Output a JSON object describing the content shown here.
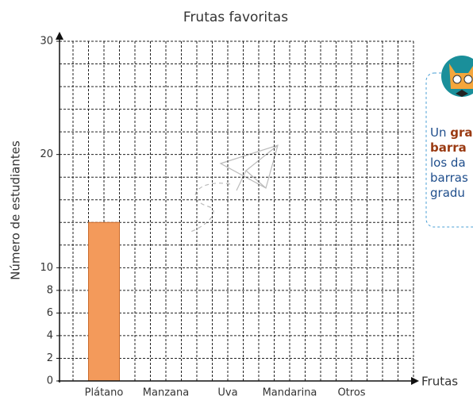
{
  "chart_data": {
    "type": "bar",
    "title": "Frutas favoritas",
    "ylabel": "Número de estudiantes",
    "xlabel": "Frutas",
    "categories": [
      "Plátano",
      "Manzana",
      "Uva",
      "Mandarina",
      "Otros"
    ],
    "values": [
      14,
      null,
      null,
      null,
      null
    ],
    "color": "#f39a5b",
    "ylim": [
      0,
      30
    ],
    "yticks": [
      0,
      2,
      4,
      6,
      8,
      10,
      20,
      30
    ],
    "ygrid": [
      2,
      4,
      6,
      8,
      10,
      12,
      14,
      16,
      18,
      20,
      22,
      24,
      26,
      28,
      30
    ],
    "grid": true
  },
  "callout": {
    "lines": [
      {
        "text": "Un ",
        "bold": "gra"
      },
      {
        "bold": "barra"
      },
      {
        "text": "los da"
      },
      {
        "text": "barras"
      },
      {
        "text": "gradu"
      }
    ]
  }
}
